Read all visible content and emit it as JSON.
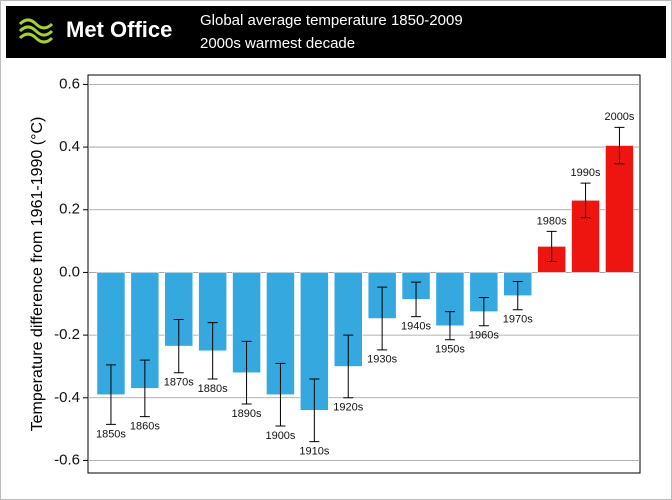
{
  "chart_data": {
    "type": "bar",
    "brand": "Met Office",
    "title": "Global average temperature 1850-2009",
    "subtitle": "2000s warmest decade",
    "y_label": "Temperature difference from 1961-1990 (°C)",
    "categories": [
      "1850s",
      "1860s",
      "1870s",
      "1880s",
      "1890s",
      "1900s",
      "1910s",
      "1920s",
      "1930s",
      "1940s",
      "1950s",
      "1960s",
      "1970s",
      "1980s",
      "1990s",
      "2000s"
    ],
    "values": [
      -0.39,
      -0.37,
      -0.235,
      -0.25,
      -0.32,
      -0.39,
      -0.44,
      -0.3,
      -0.147,
      -0.086,
      -0.17,
      -0.125,
      -0.074,
      0.083,
      0.23,
      0.405
    ],
    "errors": [
      0.095,
      0.09,
      0.085,
      0.09,
      0.1,
      0.1,
      0.1,
      0.1,
      0.1,
      0.055,
      0.045,
      0.045,
      0.045,
      0.048,
      0.055,
      0.058
    ],
    "color_below": "#35a8e0",
    "color_above": "#ee1510",
    "ylim": [
      -0.64,
      0.63
    ],
    "yticks": [
      -0.6,
      -0.4,
      -0.2,
      {
        "value": 0,
        "label": "0.0"
      },
      0.2,
      0.4,
      0.6
    ],
    "grid": true
  }
}
